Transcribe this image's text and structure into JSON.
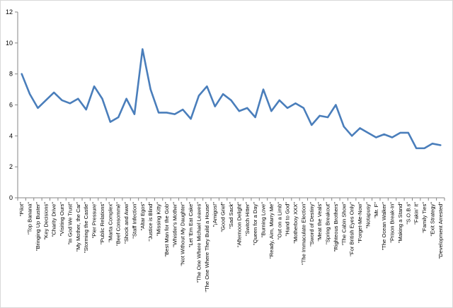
{
  "chart_data": {
    "type": "line",
    "title": "",
    "xlabel": "",
    "ylabel": "",
    "ylim": [
      0,
      12
    ],
    "yticks": [
      0,
      2,
      4,
      6,
      8,
      10,
      12
    ],
    "grid": false,
    "legend": "none",
    "line_color": "#4a7ebb",
    "categories": [
      "\"Pilot\"",
      "\"Top Banana\"",
      "\"Bringing Up Buster\"",
      "\"Key Decisions\"",
      "\"Charity Drive\"",
      "\"Visiting Ours\"",
      "\"In God We Trust\"",
      "\"My Mother, the Car\"",
      "\"Storming the Castle\"",
      "\"Pier Pressure\"",
      "\"Public Relations\"",
      "\"Marta Complex\"",
      "\"Beef Consommé\"",
      "\"Shock and Aww\"",
      "\"Staff Infection\"",
      "\"Altar Egos\"",
      "\"Justice is Blind\"",
      "\"Missing Kitty\"",
      "\"Best Man for the Gob\"",
      "\"Whistler's Mother\"",
      "\"Not Without My Daughter\"",
      "\"Let 'Em Eat Cake\"",
      "\"The One Where Michael Leaves\"",
      "\"The One Where They Build a House\"",
      "\"¡Amigos!\"",
      "\"Good Grief\"",
      "\"Sad Sack\"",
      "\"Afternoon Delight\"",
      "\"Switch Hitter\"",
      "\"Queen for a Day\"",
      "\"Burning Love\"",
      "\"Ready, Aim, Marry Me\"",
      "\"Out on a Limb\"",
      "\"Hand to God\"",
      "\"Motherboy XXX\"",
      "\"The Immaculate Election\"",
      "\"Sword of Destiny\"",
      "\"Meat the Veals\"",
      "\"Spring Breakout\"",
      "\"Righteous Brothers\"",
      "\"The Cabin Show\"",
      "\"For British Eyes Only\"",
      "\"Forget-Me-Now\"",
      "\"Notapusy\"",
      "\"Mr. F\"",
      "\"The Ocean Walker\"",
      "\"Prison Break-In\"",
      "\"Making a Stand\"",
      "\"S.O.B.s\"",
      "\"Fakin' It\"",
      "\"Family Ties\"",
      "\"Exit Strategy\"",
      "\"Development Arrested\""
    ],
    "series": [
      {
        "values": [
          8.0,
          6.7,
          5.8,
          6.3,
          6.8,
          6.3,
          6.1,
          6.4,
          5.7,
          7.2,
          6.4,
          4.9,
          5.2,
          6.4,
          5.4,
          9.6,
          7.0,
          5.5,
          5.5,
          5.4,
          5.7,
          5.1,
          6.6,
          7.2,
          5.9,
          6.7,
          6.3,
          5.6,
          5.8,
          5.2,
          7.0,
          5.6,
          6.3,
          5.8,
          6.1,
          5.8,
          4.7,
          5.3,
          5.2,
          6.0,
          4.6,
          4.0,
          4.5,
          4.2,
          3.9,
          4.1,
          3.9,
          4.2,
          4.2,
          3.2,
          3.2,
          3.5,
          3.4
        ]
      }
    ]
  }
}
